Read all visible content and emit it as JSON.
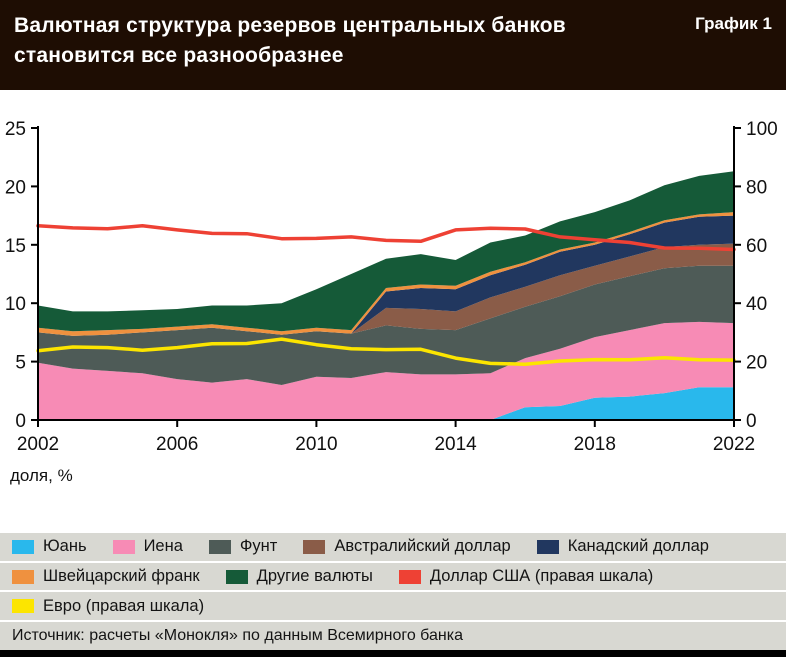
{
  "header": {
    "title_line1": "Валютная структура резервов центральных банков",
    "title_line2": "становится все разнообразнее",
    "figure_label": "График 1"
  },
  "source": {
    "text": "Источник: расчеты «Монокля» по данным Всемирного банка"
  },
  "legend": {
    "rows": [
      [
        {
          "label": "Юань",
          "color": "#29b8ec"
        },
        {
          "label": "Иена",
          "color": "#f78bb5"
        },
        {
          "label": "Фунт",
          "color": "#4e5b57"
        },
        {
          "label": "Австралийский доллар",
          "color": "#8a5c48"
        },
        {
          "label": "Канадский доллар",
          "color": "#21375f"
        }
      ],
      [
        {
          "label": "Швейцарский франк",
          "color": "#ef913f"
        },
        {
          "label": "Другие валюты",
          "color": "#155a38"
        },
        {
          "label": "Доллар США (правая шкала)",
          "color": "#ee4134"
        }
      ],
      [
        {
          "label": "Евро (правая шкала)",
          "color": "#fce500"
        }
      ]
    ]
  },
  "chart_data": {
    "type": "area",
    "title": "Валютная структура резервов центральных банков становится все разнообразнее",
    "ylabel": "доля, %",
    "x": [
      2002,
      2003,
      2004,
      2005,
      2006,
      2007,
      2008,
      2009,
      2010,
      2011,
      2012,
      2013,
      2014,
      2015,
      2016,
      2017,
      2018,
      2019,
      2020,
      2021,
      2022
    ],
    "x_ticks": [
      2002,
      2006,
      2010,
      2014,
      2018,
      2022
    ],
    "left_axis": {
      "lim": [
        0,
        25
      ],
      "ticks": [
        0,
        5,
        10,
        15,
        20,
        25
      ]
    },
    "right_axis": {
      "lim": [
        0,
        100
      ],
      "ticks": [
        0,
        20,
        40,
        60,
        80,
        100
      ]
    },
    "grid": false,
    "legend_position": "bottom",
    "series": [
      {
        "id": "yuan",
        "name": "Юань",
        "type": "area",
        "axis": "left",
        "color": "#29b8ec",
        "values": [
          0,
          0,
          0,
          0,
          0,
          0,
          0,
          0,
          0,
          0,
          0,
          0,
          0,
          0,
          1.1,
          1.2,
          1.9,
          2.0,
          2.3,
          2.8,
          2.8
        ]
      },
      {
        "id": "yen",
        "name": "Иена",
        "type": "area",
        "axis": "left",
        "color": "#f78bb5",
        "values": [
          4.9,
          4.4,
          4.2,
          4.0,
          3.5,
          3.2,
          3.5,
          3.0,
          3.7,
          3.6,
          4.1,
          3.9,
          3.9,
          4.0,
          4.2,
          4.9,
          5.2,
          5.7,
          6.0,
          5.6,
          5.5
        ]
      },
      {
        "id": "pound",
        "name": "Фунт",
        "type": "area",
        "axis": "left",
        "color": "#4e5b57",
        "values": [
          2.6,
          2.8,
          3.1,
          3.5,
          4.2,
          4.7,
          4.1,
          4.3,
          3.9,
          3.8,
          4.0,
          3.9,
          3.8,
          4.7,
          4.4,
          4.5,
          4.5,
          4.6,
          4.7,
          4.8,
          4.9
        ]
      },
      {
        "id": "aud",
        "name": "Австралийский доллар",
        "type": "area",
        "axis": "left",
        "color": "#8a5c48",
        "values": [
          0,
          0,
          0,
          0,
          0,
          0,
          0,
          0,
          0,
          0,
          1.5,
          1.7,
          1.6,
          1.8,
          1.7,
          1.8,
          1.6,
          1.7,
          1.8,
          1.8,
          1.9
        ]
      },
      {
        "id": "cad",
        "name": "Канадский доллар",
        "type": "area",
        "axis": "left",
        "color": "#21375f",
        "values": [
          0,
          0,
          0,
          0,
          0,
          0,
          0,
          0,
          0,
          0,
          1.4,
          1.8,
          1.9,
          1.9,
          1.9,
          2.0,
          1.8,
          1.9,
          2.1,
          2.4,
          2.4
        ]
      },
      {
        "id": "chf",
        "name": "Швейцарский франк",
        "type": "area",
        "axis": "left",
        "color": "#ef913f",
        "values": [
          0.4,
          0.4,
          0.4,
          0.3,
          0.3,
          0.3,
          0.3,
          0.3,
          0.3,
          0.3,
          0.3,
          0.3,
          0.3,
          0.3,
          0.2,
          0.2,
          0.2,
          0.2,
          0.2,
          0.2,
          0.3
        ]
      },
      {
        "id": "other",
        "name": "Другие валюты",
        "type": "area",
        "axis": "left",
        "color": "#155a38",
        "values": [
          1.9,
          1.7,
          1.6,
          1.6,
          1.5,
          1.6,
          1.9,
          2.4,
          3.3,
          4.8,
          2.5,
          2.6,
          2.2,
          2.5,
          2.3,
          2.4,
          2.6,
          2.7,
          3.0,
          3.3,
          3.5
        ]
      },
      {
        "id": "usd",
        "name": "Доллар США (правая шкала)",
        "type": "line",
        "axis": "right",
        "color": "#ee4134",
        "values": [
          66.5,
          65.8,
          65.5,
          66.5,
          65.1,
          63.9,
          63.8,
          62.1,
          62.2,
          62.7,
          61.5,
          61.2,
          65.1,
          65.7,
          65.4,
          62.7,
          61.7,
          60.8,
          58.9,
          58.8,
          58.4
        ]
      },
      {
        "id": "eur",
        "name": "Евро (правая шкала)",
        "type": "line",
        "axis": "right",
        "color": "#fce500",
        "values": [
          23.7,
          25.0,
          24.8,
          23.9,
          24.8,
          26.1,
          26.2,
          27.7,
          25.8,
          24.4,
          24.1,
          24.2,
          21.2,
          19.4,
          19.1,
          20.2,
          20.7,
          20.6,
          21.3,
          20.6,
          20.5
        ]
      }
    ]
  }
}
